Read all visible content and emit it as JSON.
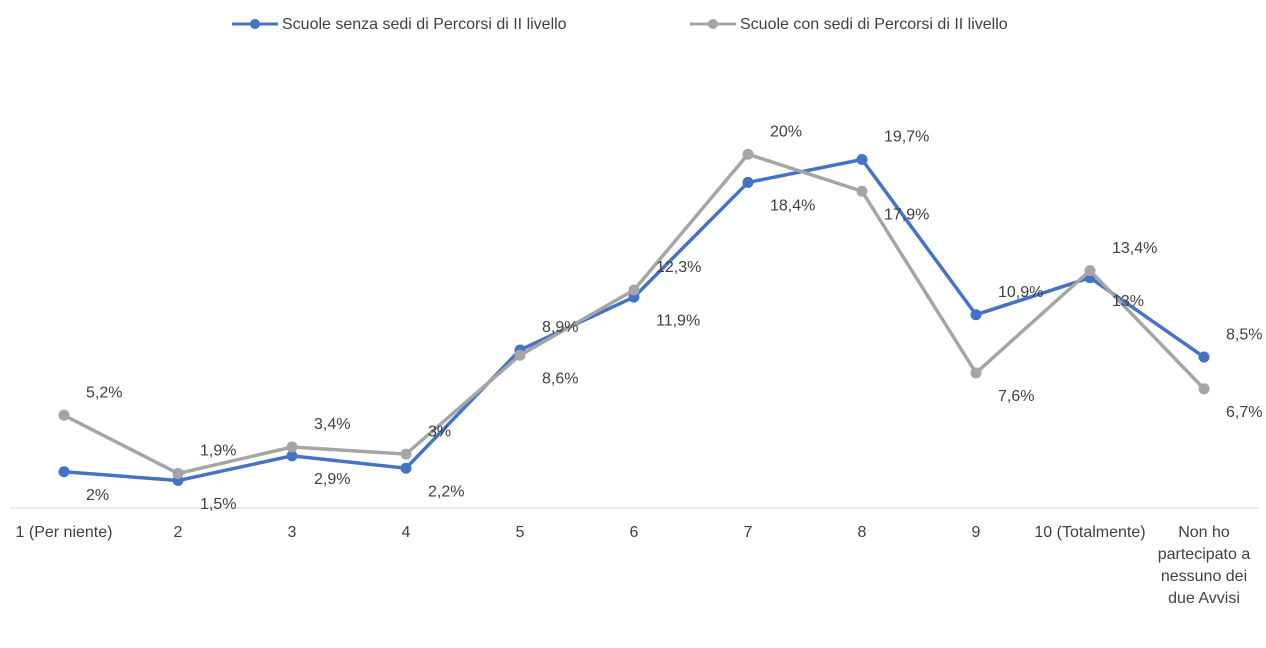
{
  "chart_data": {
    "type": "line",
    "categories": [
      "1 (Per niente)",
      "2",
      "3",
      "4",
      "5",
      "6",
      "7",
      "8",
      "9",
      "10 (Totalmente)",
      "Non ho partecipato a nessuno dei due Avvisi"
    ],
    "series": [
      {
        "name": "Scuole senza sedi di Percorsi di II livello",
        "color": "#4472c4",
        "values": [
          2,
          1.5,
          2.9,
          2.2,
          8.9,
          11.9,
          18.4,
          19.7,
          10.9,
          13,
          8.5
        ],
        "value_labels": [
          "2%",
          "1,5%",
          "2,9%",
          "2,2%",
          "8,9%",
          "11,9%",
          "18,4%",
          "19,7%",
          "10,9%",
          "13%",
          "8,5%"
        ]
      },
      {
        "name": "Scuole con sedi di Percorsi di II livello",
        "color": "#a5a5a5",
        "values": [
          5.2,
          1.9,
          3.4,
          3,
          8.6,
          12.3,
          20,
          17.9,
          7.6,
          13.4,
          6.7
        ],
        "value_labels": [
          "5,2%",
          "1,9%",
          "3,4%",
          "3%",
          "8,6%",
          "12,3%",
          "20%",
          "17,9%",
          "7,6%",
          "13,4%",
          "6,7%"
        ]
      }
    ],
    "ylim": [
      0,
      25
    ]
  }
}
